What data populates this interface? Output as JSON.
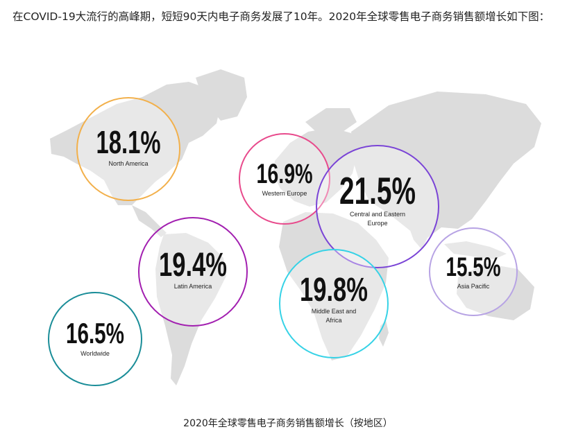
{
  "intro_text": "在COVID-19大流行的高峰期，短短90天内电子商务发展了10年。2020年全球零售电子商务销售额增长如下图：",
  "caption": "2020年全球零售电子商务销售额增长（按地区）",
  "colors": {
    "map_land": "#dcdcdc",
    "north_america": "#f2b04b",
    "western_europe": "#e84a8c",
    "central_eastern_europe": "#7a44d6",
    "latin_america": "#a21fb0",
    "middle_east_africa": "#36d2e6",
    "asia_pacific": "#b7a3e4",
    "worldwide": "#1a8d98"
  },
  "chart_data": {
    "type": "bubble-map",
    "unit": "%",
    "regions": [
      {
        "id": "north_america",
        "label_lines": [
          "North America"
        ],
        "value": 18.1,
        "value_text": "18.1%",
        "color": "#f2b04b"
      },
      {
        "id": "western_europe",
        "label_lines": [
          "Western Europe"
        ],
        "value": 16.9,
        "value_text": "16.9%",
        "color": "#e84a8c"
      },
      {
        "id": "central_eastern_europe",
        "label_lines": [
          "Central and Eastern",
          "Europe"
        ],
        "value": 21.5,
        "value_text": "21.5%",
        "color": "#7a44d6"
      },
      {
        "id": "latin_america",
        "label_lines": [
          "Latin America"
        ],
        "value": 19.4,
        "value_text": "19.4%",
        "color": "#a21fb0"
      },
      {
        "id": "middle_east_africa",
        "label_lines": [
          "Middle East and",
          "Africa"
        ],
        "value": 19.8,
        "value_text": "19.8%",
        "color": "#36d2e6"
      },
      {
        "id": "asia_pacific",
        "label_lines": [
          "Asia Pacific"
        ],
        "value": 15.5,
        "value_text": "15.5%",
        "color": "#b7a3e4"
      },
      {
        "id": "worldwide",
        "label_lines": [
          "Worldwide"
        ],
        "value": 16.5,
        "value_text": "16.5%",
        "color": "#1a8d98"
      }
    ]
  }
}
